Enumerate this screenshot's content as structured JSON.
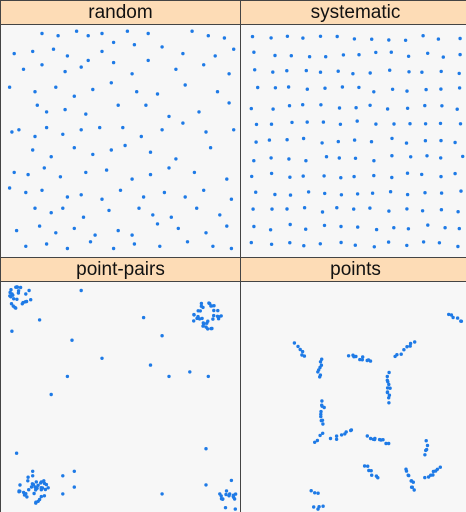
{
  "chart_data": [
    {
      "type": "scatter",
      "panel": "random",
      "xlim": [
        0,
        1
      ],
      "ylim": [
        0,
        1
      ],
      "point_color": "#1e7ae6",
      "points": [
        [
          0.16,
          0.98
        ],
        [
          0.23,
          0.97
        ],
        [
          0.31,
          0.99
        ],
        [
          0.36,
          0.97
        ],
        [
          0.42,
          0.98
        ],
        [
          0.47,
          0.94
        ],
        [
          0.53,
          0.99
        ],
        [
          0.62,
          0.98
        ],
        [
          0.81,
          0.99
        ],
        [
          0.88,
          0.97
        ],
        [
          0.95,
          0.96
        ],
        [
          0.04,
          0.89
        ],
        [
          0.12,
          0.9
        ],
        [
          0.21,
          0.91
        ],
        [
          0.27,
          0.88
        ],
        [
          0.36,
          0.86
        ],
        [
          0.42,
          0.9
        ],
        [
          0.56,
          0.93
        ],
        [
          0.68,
          0.92
        ],
        [
          0.77,
          0.89
        ],
        [
          0.91,
          0.88
        ],
        [
          0.99,
          0.91
        ],
        [
          0.08,
          0.82
        ],
        [
          0.16,
          0.84
        ],
        [
          0.26,
          0.81
        ],
        [
          0.33,
          0.83
        ],
        [
          0.47,
          0.85
        ],
        [
          0.55,
          0.8
        ],
        [
          0.62,
          0.86
        ],
        [
          0.74,
          0.82
        ],
        [
          0.86,
          0.84
        ],
        [
          0.97,
          0.8
        ],
        [
          0.02,
          0.74
        ],
        [
          0.13,
          0.72
        ],
        [
          0.22,
          0.74
        ],
        [
          0.3,
          0.7
        ],
        [
          0.38,
          0.73
        ],
        [
          0.46,
          0.76
        ],
        [
          0.57,
          0.72
        ],
        [
          0.66,
          0.71
        ],
        [
          0.78,
          0.75
        ],
        [
          0.92,
          0.72
        ],
        [
          0.14,
          0.66
        ],
        [
          0.18,
          0.63
        ],
        [
          0.26,
          0.64
        ],
        [
          0.35,
          0.62
        ],
        [
          0.49,
          0.66
        ],
        [
          0.61,
          0.66
        ],
        [
          0.71,
          0.61
        ],
        [
          0.84,
          0.63
        ],
        [
          0.97,
          0.67
        ],
        [
          0.03,
          0.54
        ],
        [
          0.06,
          0.55
        ],
        [
          0.13,
          0.52
        ],
        [
          0.18,
          0.56
        ],
        [
          0.25,
          0.53
        ],
        [
          0.33,
          0.55
        ],
        [
          0.41,
          0.56
        ],
        [
          0.51,
          0.56
        ],
        [
          0.59,
          0.52
        ],
        [
          0.68,
          0.55
        ],
        [
          0.77,
          0.58
        ],
        [
          0.87,
          0.54
        ],
        [
          0.99,
          0.55
        ],
        [
          0.12,
          0.46
        ],
        [
          0.2,
          0.43
        ],
        [
          0.3,
          0.47
        ],
        [
          0.38,
          0.44
        ],
        [
          0.46,
          0.46
        ],
        [
          0.52,
          0.48
        ],
        [
          0.63,
          0.45
        ],
        [
          0.74,
          0.42
        ],
        [
          0.89,
          0.47
        ],
        [
          0.04,
          0.36
        ],
        [
          0.1,
          0.35
        ],
        [
          0.17,
          0.38
        ],
        [
          0.24,
          0.34
        ],
        [
          0.35,
          0.36
        ],
        [
          0.44,
          0.37
        ],
        [
          0.55,
          0.33
        ],
        [
          0.63,
          0.35
        ],
        [
          0.71,
          0.38
        ],
        [
          0.82,
          0.36
        ],
        [
          0.96,
          0.33
        ],
        [
          0.02,
          0.29
        ],
        [
          0.09,
          0.27
        ],
        [
          0.16,
          0.28
        ],
        [
          0.27,
          0.25
        ],
        [
          0.33,
          0.26
        ],
        [
          0.42,
          0.24
        ],
        [
          0.5,
          0.28
        ],
        [
          0.6,
          0.25
        ],
        [
          0.69,
          0.27
        ],
        [
          0.78,
          0.25
        ],
        [
          0.86,
          0.28
        ],
        [
          0.98,
          0.24
        ],
        [
          0.13,
          0.2
        ],
        [
          0.2,
          0.18
        ],
        [
          0.25,
          0.2
        ],
        [
          0.34,
          0.16
        ],
        [
          0.45,
          0.19
        ],
        [
          0.58,
          0.2
        ],
        [
          0.64,
          0.17
        ],
        [
          0.72,
          0.16
        ],
        [
          0.83,
          0.2
        ],
        [
          0.93,
          0.17
        ],
        [
          0.05,
          0.1
        ],
        [
          0.15,
          0.12
        ],
        [
          0.22,
          0.09
        ],
        [
          0.3,
          0.11
        ],
        [
          0.39,
          0.08
        ],
        [
          0.49,
          0.1
        ],
        [
          0.55,
          0.08
        ],
        [
          0.66,
          0.13
        ],
        [
          0.75,
          0.11
        ],
        [
          0.87,
          0.09
        ],
        [
          0.96,
          0.12
        ],
        [
          0.09,
          0.03
        ],
        [
          0.18,
          0.04
        ],
        [
          0.27,
          0.02
        ],
        [
          0.37,
          0.05
        ],
        [
          0.47,
          0.02
        ],
        [
          0.56,
          0.04
        ],
        [
          0.67,
          0.03
        ],
        [
          0.79,
          0.05
        ],
        [
          0.9,
          0.03
        ],
        [
          0.98,
          0.02
        ]
      ]
    },
    {
      "type": "scatter",
      "panel": "systematic",
      "xlim": [
        0,
        1
      ],
      "ylim": [
        0,
        1
      ],
      "point_color": "#1e7ae6",
      "grid": {
        "nx": 13,
        "ny": 13,
        "jitter": 0.012
      }
    },
    {
      "type": "scatter",
      "panel": "point-pairs",
      "xlim": [
        0,
        1
      ],
      "ylim": [
        0,
        1
      ],
      "point_color": "#1e7ae6",
      "clusters": [
        {
          "cx": 0.06,
          "cy": 0.95,
          "r": 0.06,
          "n": 26
        },
        {
          "cx": 0.87,
          "cy": 0.87,
          "r": 0.07,
          "n": 34
        },
        {
          "cx": 0.12,
          "cy": 0.1,
          "r": 0.07,
          "n": 38
        },
        {
          "cx": 0.97,
          "cy": 0.05,
          "r": 0.05,
          "n": 18
        }
      ],
      "scattered": [
        [
          0.03,
          0.8
        ],
        [
          0.15,
          0.85
        ],
        [
          0.33,
          0.98
        ],
        [
          0.29,
          0.76
        ],
        [
          0.6,
          0.86
        ],
        [
          0.68,
          0.78
        ],
        [
          0.63,
          0.65
        ],
        [
          0.71,
          0.6
        ],
        [
          0.8,
          0.62
        ],
        [
          0.88,
          0.6
        ],
        [
          0.27,
          0.6
        ],
        [
          0.42,
          0.68
        ],
        [
          0.2,
          0.52
        ],
        [
          0.12,
          0.18
        ],
        [
          0.25,
          0.16
        ],
        [
          0.3,
          0.11
        ],
        [
          0.3,
          0.18
        ],
        [
          0.25,
          0.08
        ],
        [
          0.05,
          0.26
        ],
        [
          0.87,
          0.28
        ],
        [
          0.68,
          0.08
        ],
        [
          0.87,
          0.12
        ],
        [
          0.93,
          0.08
        ],
        [
          0.98,
          0.14
        ]
      ]
    },
    {
      "type": "scatter",
      "panel": "points",
      "xlim": [
        0,
        1
      ],
      "ylim": [
        0,
        1
      ],
      "point_color": "#1e7ae6",
      "groups": [
        {
          "cx": 0.95,
          "cy": 0.86,
          "r": 0.04,
          "n": 6
        },
        {
          "cx": 0.72,
          "cy": 0.72,
          "r": 0.06,
          "n": 8
        },
        {
          "cx": 0.25,
          "cy": 0.72,
          "r": 0.04,
          "n": 6
        },
        {
          "cx": 0.52,
          "cy": 0.68,
          "r": 0.05,
          "n": 10
        },
        {
          "cx": 0.34,
          "cy": 0.63,
          "r": 0.04,
          "n": 8
        },
        {
          "cx": 0.65,
          "cy": 0.55,
          "r": 0.06,
          "n": 12
        },
        {
          "cx": 0.35,
          "cy": 0.44,
          "r": 0.05,
          "n": 10
        },
        {
          "cx": 0.44,
          "cy": 0.34,
          "r": 0.05,
          "n": 8
        },
        {
          "cx": 0.33,
          "cy": 0.33,
          "r": 0.03,
          "n": 4
        },
        {
          "cx": 0.6,
          "cy": 0.32,
          "r": 0.05,
          "n": 10
        },
        {
          "cx": 0.82,
          "cy": 0.28,
          "r": 0.03,
          "n": 5
        },
        {
          "cx": 0.57,
          "cy": 0.18,
          "r": 0.04,
          "n": 7
        },
        {
          "cx": 0.75,
          "cy": 0.14,
          "r": 0.05,
          "n": 10
        },
        {
          "cx": 0.85,
          "cy": 0.17,
          "r": 0.04,
          "n": 8
        },
        {
          "cx": 0.31,
          "cy": 0.09,
          "r": 0.02,
          "n": 3
        },
        {
          "cx": 0.33,
          "cy": 0.02,
          "r": 0.02,
          "n": 4
        }
      ]
    }
  ],
  "panels": [
    {
      "label": "random"
    },
    {
      "label": "systematic"
    },
    {
      "label": "point-pairs"
    },
    {
      "label": "points"
    }
  ],
  "colors": {
    "strip_bg": "#fddcb6",
    "panel_bg": "#f7f7f7",
    "point": "#1e7ae6",
    "border": "#444444"
  }
}
